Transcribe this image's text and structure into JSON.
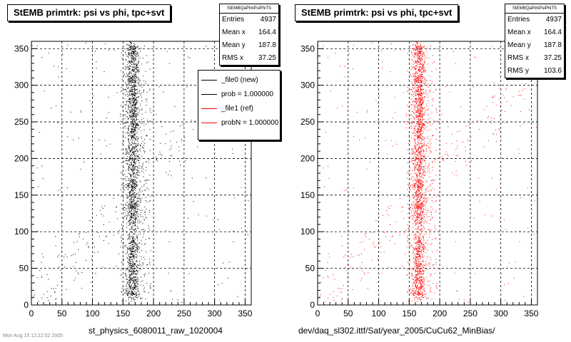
{
  "chart_data": [
    {
      "type": "scatter",
      "title": "StEMB primtrk: psi vs phi, tpc+svt",
      "xlabel": "st_physics_6080011_raw_1020004",
      "ylabel": "",
      "xlim": [
        0,
        360
      ],
      "ylim": [
        0,
        360
      ],
      "xticks": [
        "0",
        "50",
        "100",
        "150",
        "200",
        "250",
        "300",
        "350"
      ],
      "yticks": [
        "0",
        "50",
        "100",
        "150",
        "200",
        "250",
        "300",
        "350"
      ],
      "grid": true,
      "marker_color": "#000000",
      "stats": {
        "header": "StEMBQaPtrkPsiPhiTS",
        "rows": [
          {
            "label": "Entries",
            "value": "4937"
          },
          {
            "label": "Mean x",
            "value": "164.4"
          },
          {
            "label": "Mean y",
            "value": "187.8"
          },
          {
            "label": "RMS x",
            "value": "37.25"
          }
        ]
      },
      "legend": {
        "placement": "right",
        "entries": [
          {
            "label": "_file0 (new)",
            "color": "#000000"
          },
          {
            "label": "prob = 1.000000",
            "color": "#000000"
          },
          {
            "label": "_file1 (ref)",
            "color": "#ff0000"
          },
          {
            "label": "probN = 1.000000",
            "color": "#ff0000"
          }
        ]
      },
      "distribution": {
        "entries": 4937,
        "mean_x": 164.4,
        "rms_x": 37.25,
        "mean_y": 187.8,
        "rms_y": 103.6,
        "core_x_range": [
          155,
          175
        ]
      }
    },
    {
      "type": "scatter",
      "title": "StEMB primtrk: psi vs phi, tpc+svt",
      "xlabel": "dev/daq_sl302.ittf/Sat/year_2005/CuCu62_MinBias/",
      "ylabel": "",
      "xlim": [
        0,
        360
      ],
      "ylim": [
        0,
        360
      ],
      "xticks": [
        "0",
        "50",
        "100",
        "150",
        "200",
        "250",
        "300",
        "350"
      ],
      "yticks": [
        "0",
        "50",
        "100",
        "150",
        "200",
        "250",
        "300",
        "350"
      ],
      "grid": true,
      "marker_color": "#ff0000",
      "stats": {
        "header": "StEMBQaPtrkPsiPhiTS",
        "rows": [
          {
            "label": "Entries",
            "value": "4937"
          },
          {
            "label": "Mean x",
            "value": "164.4"
          },
          {
            "label": "Mean y",
            "value": "187.8"
          },
          {
            "label": "RMS x",
            "value": "37.25"
          },
          {
            "label": "RMS y",
            "value": "103.6"
          }
        ]
      },
      "distribution": {
        "entries": 4937,
        "mean_x": 164.4,
        "rms_x": 37.25,
        "mean_y": 187.8,
        "rms_y": 103.6,
        "core_x_range": [
          155,
          175
        ]
      }
    }
  ],
  "footer": "Mon Aug 15 12:22:52 2005"
}
